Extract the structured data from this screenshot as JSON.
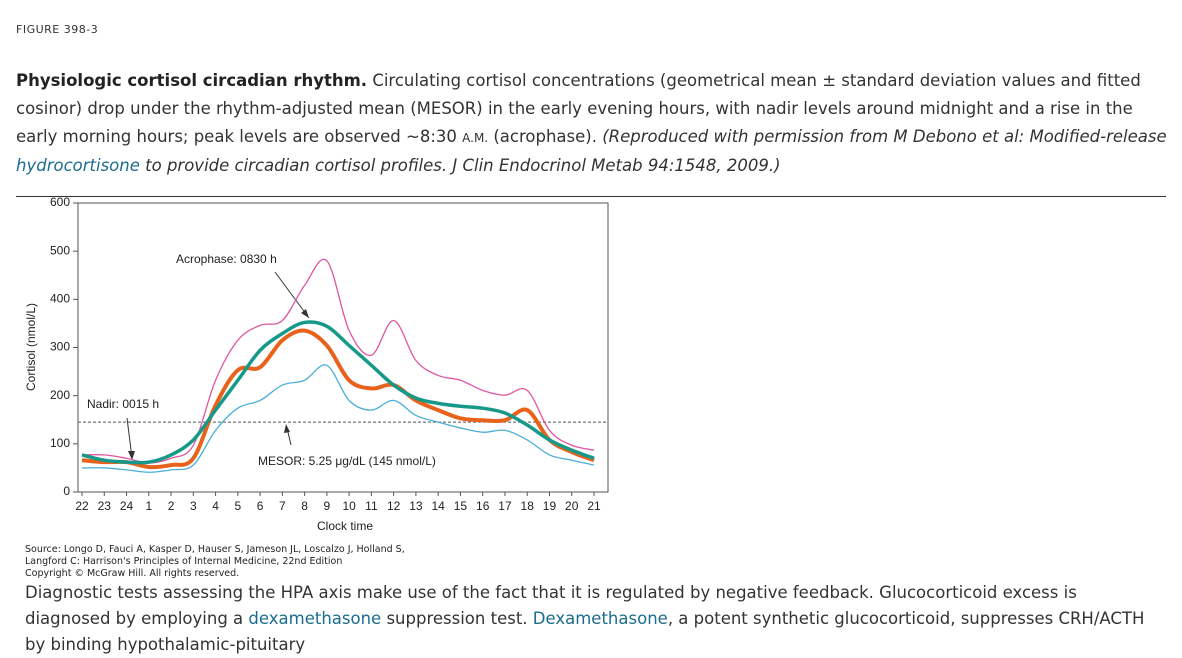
{
  "figure_label": "FIGURE 398-3",
  "caption": {
    "title": "Physiologic cortisol circadian rhythm.",
    "text": "Circulating cortisol concentrations (geometrical mean ± standard deviation values and fitted cosinor) drop under the rhythm-adjusted mean (MESOR) in the early evening hours, with nadir levels around midnight and a rise in the early morning hours; peak levels are observed ~8:30",
    "small_caps": "A.M.",
    "text2": "(acrophase).",
    "citation_start": "(Reproduced with permission from M Debono et al: Modified-release",
    "citation_link": "hydrocortisone",
    "citation_end": "to provide circadian cortisol profiles. J Clin Endocrinol Metab 94:1548, 2009.)"
  },
  "chart_data": {
    "type": "line",
    "x_label": "Clock time",
    "y_label": "Cortisol (nmol/L)",
    "categories": [
      "22",
      "23",
      "24",
      "1",
      "2",
      "3",
      "4",
      "5",
      "6",
      "7",
      "8",
      "9",
      "10",
      "11",
      "12",
      "13",
      "14",
      "15",
      "16",
      "17",
      "18",
      "19",
      "20",
      "21"
    ],
    "ylim": [
      0,
      600
    ],
    "yticks": [
      0,
      100,
      200,
      300,
      400,
      500,
      600
    ],
    "series": [
      {
        "name": "Mean + SD",
        "color": "#e0559e",
        "values": [
          77,
          77,
          70,
          60,
          70,
          97,
          232,
          315,
          346,
          356,
          429,
          480,
          335,
          284,
          356,
          273,
          242,
          232,
          211,
          201,
          211,
          128,
          97,
          87
        ]
      },
      {
        "name": "Mean - SD",
        "color": "#4aaed6",
        "values": [
          50,
          50,
          46,
          41,
          46,
          56,
          128,
          174,
          190,
          222,
          232,
          263,
          190,
          170,
          190,
          159,
          145,
          133,
          124,
          128,
          108,
          77,
          66,
          56
        ]
      },
      {
        "name": "Mean",
        "color": "#e8621c",
        "values": [
          66,
          62,
          62,
          52,
          56,
          70,
          180,
          253,
          259,
          315,
          335,
          304,
          232,
          215,
          222,
          190,
          170,
          153,
          149,
          149,
          170,
          108,
          83,
          66
        ]
      },
      {
        "name": "Cosinor",
        "color": "#17998a",
        "values": [
          77,
          66,
          62,
          62,
          77,
          108,
          170,
          232,
          294,
          329,
          352,
          344,
          304,
          263,
          222,
          195,
          184,
          178,
          174,
          164,
          139,
          108,
          87,
          70
        ]
      }
    ],
    "mesor": 145,
    "annotations": [
      "Acrophase: 0830 h",
      "Nadir: 0015 h",
      "MESOR: 5.25 μg/dL (145 nmol/L)"
    ]
  },
  "source": [
    "Source: Longo D, Fauci A, Kasper D, Hauser S, Jameson JL, Loscalzo J, Holland S,",
    "Langford C: Harrison's Principles of Internal Medicine, 22nd Edition",
    "Copyright © McGraw Hill. All rights reserved."
  ],
  "body": {
    "text": "Diagnostic tests assessing the HPA axis make use of the fact that it is regulated by negative feedback. Glucocorticoid excess is diagnosed by employing a",
    "link1": "dexamethasone",
    "text2": "suppression test.",
    "link2": "Dexamethasone",
    "text3": ", a potent synthetic glucocorticoid, suppresses CRH/ACTH by binding hypothalamic-pituitary"
  }
}
